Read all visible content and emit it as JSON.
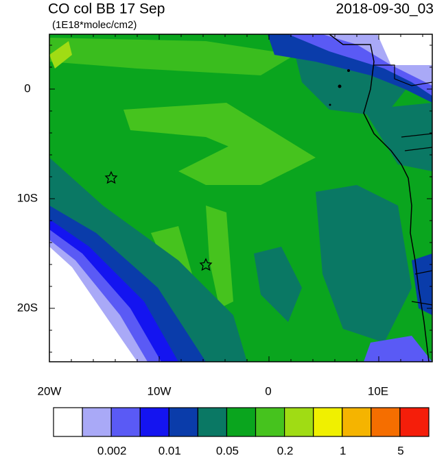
{
  "header": {
    "title": "CO col BB 17 Sep",
    "units": "(1E18*molec/cm2)",
    "time": "2018-09-30_03"
  },
  "map": {
    "lat_labels": [
      "0",
      "10S",
      "20S"
    ],
    "lon_labels": [
      "20W",
      "10W",
      "0",
      "10E"
    ]
  },
  "colorbar": {
    "colors": [
      "#ffffff",
      "#a9a9f7",
      "#5a5af5",
      "#1414f0",
      "#0a3caa",
      "#0a7864",
      "#0aa51e",
      "#46c31e",
      "#a0dc14",
      "#f0f000",
      "#f5b400",
      "#f56e00",
      "#f51e0a"
    ],
    "labels": [
      "0.002",
      "0.01",
      "0.05",
      "0.2",
      "1",
      "5"
    ]
  }
}
